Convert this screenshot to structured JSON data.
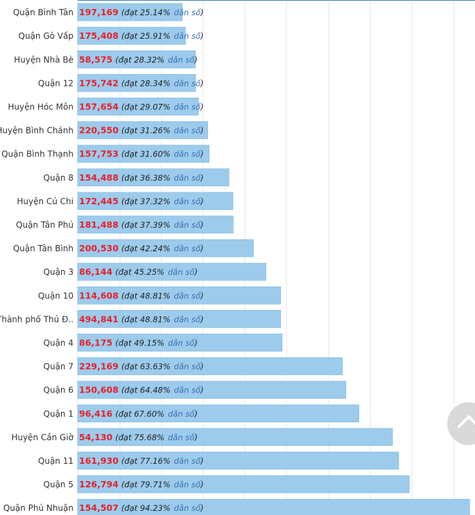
{
  "colors": {
    "bar": "#9ccbec",
    "bar_stroke": "#7fb6e0",
    "value": "#e8202a",
    "text": "#333333",
    "link": "#3b6fb5",
    "grid": "#e6e6e6"
  },
  "chart_data": {
    "type": "bar",
    "orientation": "horizontal",
    "xlim": [
      0,
      95
    ],
    "grid": true,
    "categories": [
      "Quận Bình Tân",
      "Quận Gò Vấp",
      "Huyện Nhà Bè",
      "Quận 12",
      "Huyện Hóc Môn",
      "Huyện Bình Chánh",
      "Quận Bình Thạnh",
      "Quận 8",
      "Huyện Củ Chi",
      "Quận Tân Phú",
      "Quận Tân Bình",
      "Quận 3",
      "Quận 10",
      "Thành phố Thủ Đ..",
      "Quận 4",
      "Quận 7",
      "Quận 6",
      "Quận 1",
      "Huyện Cần Giờ",
      "Quận 11",
      "Quận 5",
      "Quận Phú Nhuận"
    ],
    "counts": [
      "197,169",
      "175,408",
      "58,575",
      "175,742",
      "157,654",
      "220,550",
      "157,753",
      "154,488",
      "172,445",
      "181,488",
      "200,530",
      "86,144",
      "114,608",
      "494,841",
      "86,175",
      "229,169",
      "150,608",
      "96,416",
      "54,130",
      "161,930",
      "126,794",
      "154,507"
    ],
    "percent_labels": [
      "25.14%",
      "25.91%",
      "28.32%",
      "28.34%",
      "29.07%",
      "31.26%",
      "31.60%",
      "36.38%",
      "37.32%",
      "37.39%",
      "42.24%",
      "45.25%",
      "48.81%",
      "48.81%",
      "49.15%",
      "63.63%",
      "64.48%",
      "67.60%",
      "75.68%",
      "77.16%",
      "79.71%",
      "94.23%"
    ],
    "values": [
      25.14,
      25.91,
      28.32,
      28.34,
      29.07,
      31.26,
      31.6,
      36.38,
      37.32,
      37.39,
      42.24,
      45.25,
      48.81,
      48.81,
      49.15,
      63.63,
      64.48,
      67.6,
      75.68,
      77.16,
      79.71,
      94.23
    ],
    "label_words": {
      "prefix": "(đạt",
      "population": "dân số",
      "suffix": ")"
    }
  },
  "scroll_button_icon": "chevron-up-icon"
}
